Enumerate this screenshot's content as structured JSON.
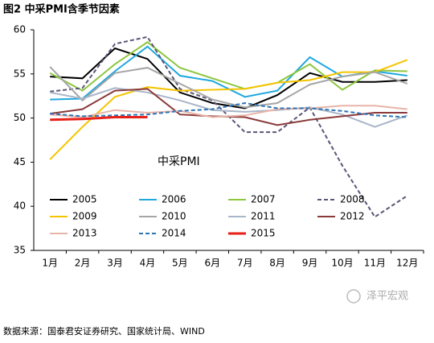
{
  "chart_data": {
    "type": "line",
    "title": "图2 中采PMI含季节因素",
    "annotation": "中采PMI",
    "watermark": "泽平宏观",
    "source": "数据来源：国泰君安证券研究、国家统计局、WIND",
    "categories": [
      "1月",
      "2月",
      "3月",
      "4月",
      "5月",
      "6月",
      "7月",
      "8月",
      "9月",
      "10月",
      "11月",
      "12月"
    ],
    "ylim": [
      35,
      60
    ],
    "yticks": [
      35,
      40,
      45,
      50,
      55,
      60
    ],
    "grid": false,
    "series": [
      {
        "name": "2005",
        "color": "#000000",
        "values": [
          54.7,
          54.5,
          57.9,
          56.7,
          52.9,
          51.7,
          51.1,
          52.6,
          55.1,
          54.1,
          54.1,
          54.3
        ]
      },
      {
        "name": "2006",
        "color": "#1fa8df",
        "values": [
          52.1,
          52.2,
          55.3,
          58.1,
          54.8,
          54.2,
          52.4,
          53.1,
          56.9,
          54.7,
          55.3,
          54.8
        ]
      },
      {
        "name": "2007",
        "color": "#8dc63f",
        "values": [
          55.1,
          53.1,
          56.1,
          58.6,
          55.7,
          54.5,
          53.3,
          54.0,
          56.1,
          53.2,
          55.4,
          55.3
        ]
      },
      {
        "name": "2008",
        "color": "#5b5577",
        "dashed": true,
        "values": [
          53.0,
          53.4,
          58.4,
          59.2,
          53.3,
          52.0,
          48.4,
          48.4,
          51.2,
          44.6,
          38.8,
          41.2
        ]
      },
      {
        "name": "2009",
        "color": "#f5c400",
        "values": [
          45.3,
          49.0,
          52.4,
          53.5,
          53.1,
          53.2,
          53.3,
          54.0,
          54.3,
          55.2,
          55.2,
          56.6
        ]
      },
      {
        "name": "2010",
        "color": "#a6a6a6",
        "values": [
          55.8,
          52.0,
          55.1,
          55.7,
          53.9,
          52.1,
          51.2,
          51.7,
          53.8,
          54.7,
          55.2,
          53.9
        ]
      },
      {
        "name": "2011",
        "color": "#a9b5c8",
        "values": [
          52.9,
          52.2,
          53.4,
          52.9,
          52.0,
          50.9,
          50.7,
          50.9,
          51.2,
          50.4,
          49.0,
          50.3
        ]
      },
      {
        "name": "2012",
        "color": "#8b3a3a",
        "values": [
          50.5,
          51.0,
          53.1,
          53.3,
          50.4,
          50.2,
          50.1,
          49.2,
          49.8,
          50.2,
          50.6,
          50.6
        ]
      },
      {
        "name": "2013",
        "color": "#e8b4a8",
        "values": [
          50.4,
          50.1,
          50.9,
          50.6,
          50.8,
          50.1,
          50.3,
          51.0,
          51.1,
          51.4,
          51.4,
          51.0
        ]
      },
      {
        "name": "2014",
        "color": "#2e75b6",
        "dashed": true,
        "values": [
          50.5,
          50.2,
          50.3,
          50.4,
          50.8,
          51.0,
          51.7,
          51.1,
          51.1,
          50.8,
          50.3,
          50.1
        ]
      },
      {
        "name": "2015",
        "color": "#e8201a",
        "linewidth": 3,
        "values": [
          49.8,
          49.9,
          50.1,
          50.1,
          null,
          null,
          null,
          null,
          null,
          null,
          null,
          null
        ]
      }
    ]
  }
}
